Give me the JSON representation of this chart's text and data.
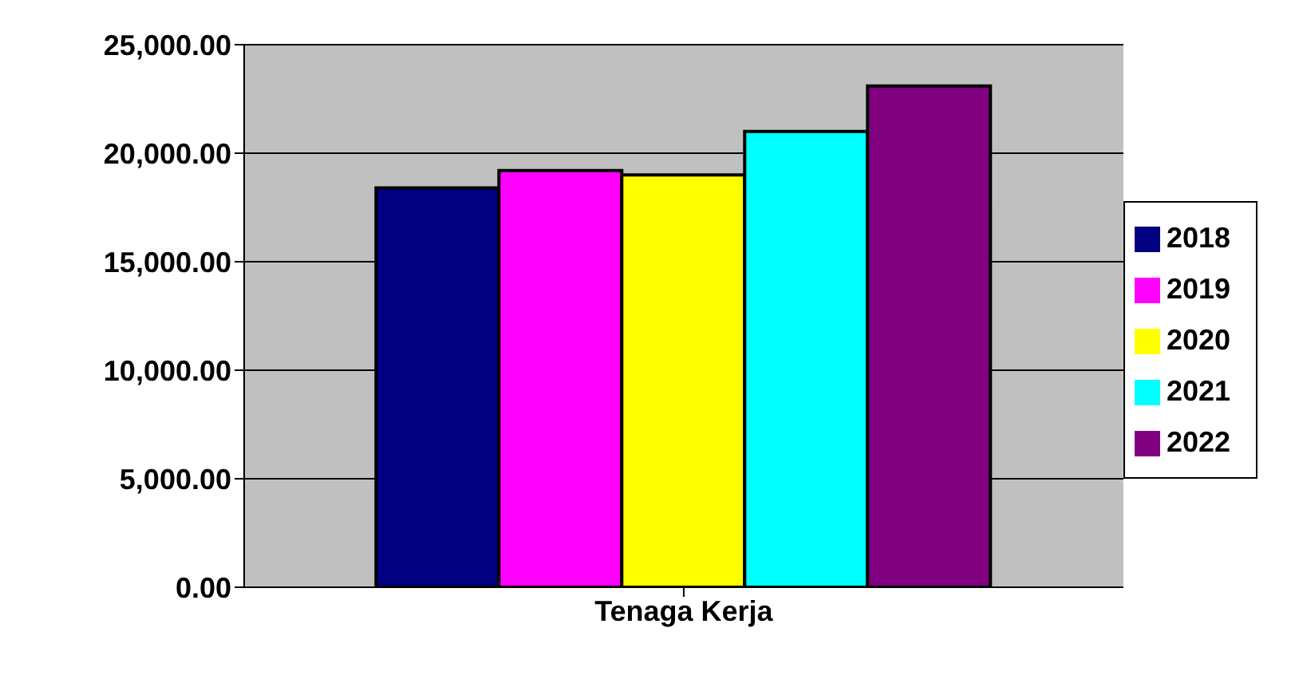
{
  "chart_data": {
    "type": "bar",
    "categories": [
      "Tenaga Kerja"
    ],
    "series": [
      {
        "name": "2018",
        "color": "#000080",
        "values": [
          18400
        ]
      },
      {
        "name": "2019",
        "color": "#ff00ff",
        "values": [
          19200
        ]
      },
      {
        "name": "2020",
        "color": "#ffff00",
        "values": [
          19000
        ]
      },
      {
        "name": "2021",
        "color": "#00ffff",
        "values": [
          21000
        ]
      },
      {
        "name": "2022",
        "color": "#800080",
        "values": [
          23100
        ]
      }
    ],
    "ylim": [
      0,
      25000
    ],
    "yticks": [
      {
        "value": 0,
        "label": "0.00"
      },
      {
        "value": 5000,
        "label": "5,000.00"
      },
      {
        "value": 10000,
        "label": "10,000.00"
      },
      {
        "value": 15000,
        "label": "15,000.00"
      },
      {
        "value": 20000,
        "label": "20,000.00"
      },
      {
        "value": 25000,
        "label": "25,000.00"
      }
    ],
    "grid": "y",
    "legend": "right"
  }
}
